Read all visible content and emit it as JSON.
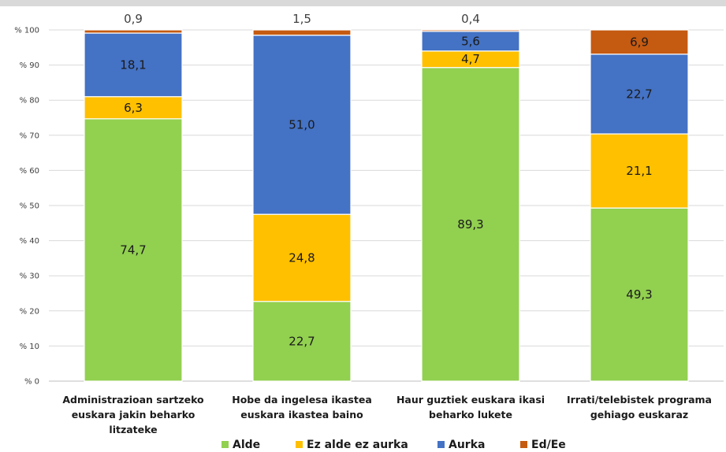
{
  "chart_data": {
    "type": "bar",
    "stacked": true,
    "categories": [
      [
        "Administrazioan sartzeko",
        "euskara jakin beharko",
        "litzateke"
      ],
      [
        "Hobe da ingelesa ikastea",
        "euskara ikastea baino"
      ],
      [
        "Haur guztiek euskara ikasi",
        "beharko lukete"
      ],
      [
        "Irrati/telebistek programa",
        "gehiago euskaraz"
      ]
    ],
    "series": [
      {
        "name": "Alde",
        "color": "#92d050",
        "values": [
          74.7,
          22.7,
          89.3,
          49.3
        ],
        "labels": [
          "74,7",
          "22,7",
          "89,3",
          "49,3"
        ]
      },
      {
        "name": "Ez alde ez aurka",
        "color": "#ffc000",
        "values": [
          6.3,
          24.8,
          4.7,
          21.1
        ],
        "labels": [
          "6,3",
          "24,8",
          "4,7",
          "21,1"
        ]
      },
      {
        "name": "Aurka",
        "color": "#4472c4",
        "values": [
          18.1,
          51.0,
          5.6,
          22.7
        ],
        "labels": [
          "18,1",
          "51,0",
          "5,6",
          "22,7"
        ]
      },
      {
        "name": "Ed/Ee",
        "color": "#c55a11",
        "values": [
          0.9,
          1.5,
          0.4,
          6.9
        ],
        "labels": [
          "0,9",
          "1,5",
          "0,4",
          "6,9"
        ]
      }
    ],
    "label_outside": [
      [
        false,
        false,
        false,
        true
      ],
      [
        false,
        false,
        false,
        true
      ],
      [
        false,
        false,
        false,
        true
      ],
      [
        false,
        false,
        false,
        false
      ]
    ],
    "ytick_labels": [
      "% 0",
      "% 10",
      "% 20",
      "% 30",
      "% 40",
      "% 50",
      "% 60",
      "% 70",
      "% 80",
      "% 90",
      "% 100"
    ],
    "ylim": [
      0,
      100
    ],
    "grid": true,
    "legend_position": "bottom"
  }
}
